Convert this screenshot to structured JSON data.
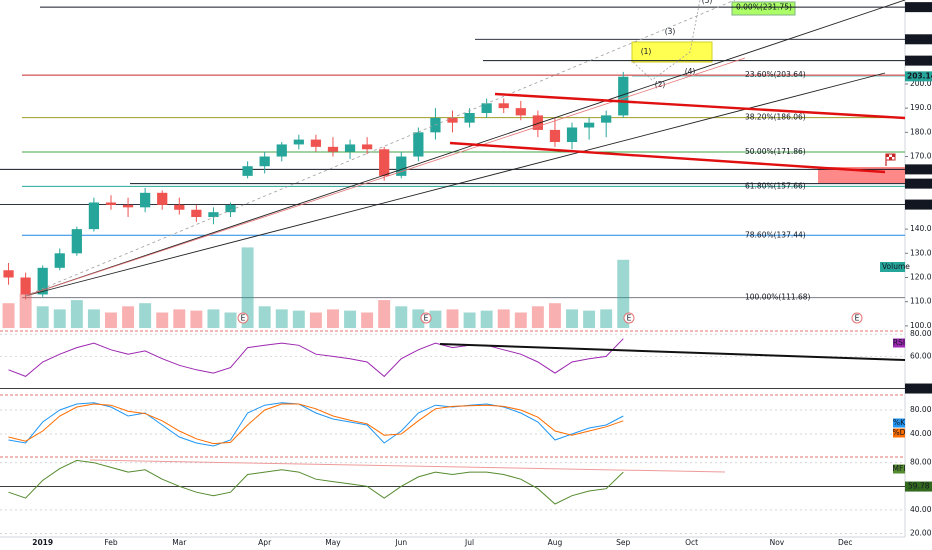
{
  "chart_data": [
    {
      "type": "candlestick",
      "categories": [
        null,
        null,
        "2019",
        null,
        null,
        null,
        "Feb",
        null,
        null,
        null,
        "Mar",
        null,
        null,
        null,
        null,
        "Apr",
        null,
        null,
        null,
        "May",
        null,
        null,
        null,
        "Jun",
        null,
        null,
        null,
        "Jul",
        null,
        null,
        null,
        null,
        "Aug",
        null,
        null,
        null,
        "Sep",
        null,
        null,
        null,
        "Oct",
        null,
        null,
        null,
        null,
        "Nov",
        null,
        null,
        null,
        "Dec",
        null,
        null,
        null
      ],
      "open": [
        123,
        120,
        113,
        124,
        130,
        140,
        151,
        150,
        149,
        155,
        150,
        148,
        145,
        147,
        162,
        166,
        170,
        175,
        177,
        174,
        172,
        175,
        173,
        162,
        170,
        180,
        186,
        184,
        188,
        192,
        190,
        187,
        181,
        176,
        182,
        184,
        187,
        null,
        null,
        null,
        null,
        null,
        null,
        null,
        null,
        null,
        null,
        null,
        null,
        null,
        null,
        null,
        null
      ],
      "high": [
        126,
        122,
        125,
        132,
        141,
        153,
        154,
        153,
        157,
        156,
        153,
        150,
        149,
        151,
        168,
        172,
        176,
        179,
        179,
        178,
        177,
        178,
        174,
        172,
        182,
        190,
        189,
        190,
        194,
        194,
        193,
        189,
        186,
        184,
        186,
        189,
        205,
        null,
        null,
        null,
        null,
        null,
        null,
        null,
        null,
        null,
        null,
        null,
        null,
        null,
        null,
        null,
        null
      ],
      "low": [
        117,
        111,
        112,
        123,
        129,
        139,
        148,
        145,
        147,
        148,
        146,
        143,
        142,
        145,
        161,
        163,
        168,
        173,
        172,
        170,
        169,
        171,
        160,
        161,
        168,
        177,
        180,
        182,
        186,
        188,
        185,
        178,
        174,
        173,
        177,
        178,
        186,
        null,
        null,
        null,
        null,
        null,
        null,
        null,
        null,
        null,
        null,
        null,
        null,
        null,
        null,
        null,
        null
      ],
      "close": [
        120,
        113,
        124,
        130,
        140,
        151,
        150,
        149,
        155,
        150,
        148,
        145,
        147,
        150,
        166,
        170,
        175,
        177,
        174,
        172,
        175,
        173,
        162,
        170,
        180,
        186,
        184,
        188,
        192,
        190,
        187,
        181,
        176,
        182,
        184,
        187,
        203,
        null,
        null,
        null,
        null,
        null,
        null,
        null,
        null,
        null,
        null,
        null,
        null,
        null,
        null,
        null,
        null
      ],
      "up_color": "#26a69a",
      "down_color": "#ef5350",
      "volume": {
        "name": "Volume",
        "values": [
          40,
          55,
          35,
          30,
          45,
          30,
          25,
          35,
          40,
          25,
          30,
          28,
          30,
          25,
          130,
          35,
          30,
          28,
          25,
          30,
          28,
          25,
          45,
          35,
          30,
          28,
          30,
          25,
          28,
          30,
          25,
          35,
          40,
          30,
          28,
          30,
          110,
          null,
          null,
          null,
          null,
          null,
          null,
          null,
          null,
          null,
          null,
          null,
          null,
          null,
          null,
          null,
          null
        ]
      },
      "ylim": [
        98.3,
        234.7
      ],
      "yticks": [
        {
          "value": 100,
          "label": "100.00"
        },
        {
          "value": 110,
          "label": "110.00"
        },
        {
          "value": 120,
          "label": "120.00"
        },
        {
          "value": 130,
          "label": "130.00"
        },
        {
          "value": 140,
          "label": "140.00"
        },
        {
          "value": 170,
          "label": "170.00"
        },
        {
          "value": 180,
          "label": "180.00"
        },
        {
          "value": 190,
          "label": "190.00"
        },
        {
          "value": 200,
          "label": "200.00"
        }
      ],
      "fib_levels": [
        {
          "label": "0.00%(231.75)",
          "value": 231.75,
          "color": "#4caf50"
        },
        {
          "label": "23.60%(203.64)",
          "value": 203.64,
          "color": "#c62828"
        },
        {
          "label": "38.20%(186.06)",
          "value": 186.06,
          "color": "#9e9d24"
        },
        {
          "label": "50.00%(171.86)",
          "value": 171.86,
          "color": "#43a047"
        },
        {
          "label": "61.80%(157.66)",
          "value": 157.66,
          "color": "#26a69a"
        },
        {
          "label": "78.60%(137.44)",
          "value": 137.44,
          "color": "#1e88e5"
        },
        {
          "label": "100.00%(111.68)",
          "value": 111.68,
          "color": "#787b86"
        }
      ],
      "price_lines": [
        {
          "value": 231.75,
          "label": "231.75",
          "color": "#131722"
        },
        {
          "value": 218.46,
          "label": "218.46",
          "color": "#131722"
        },
        {
          "value": 209.64,
          "label": "209.64",
          "color": "#131722"
        },
        {
          "value": 203.14,
          "label": "203.14",
          "color": "#26a69a"
        },
        {
          "value": 164.69,
          "label": "164.69",
          "color": "#131722"
        },
        {
          "value": 158.8,
          "label": "158.80",
          "color": "#131722"
        },
        {
          "value": 150.14,
          "label": "150.14",
          "color": "#131722"
        }
      ],
      "annotations": [
        "(1)",
        "(2)",
        "(3)",
        "(4)",
        "(5)"
      ],
      "earnings": [
        "E",
        "E",
        "E",
        "E"
      ]
    },
    {
      "type": "line",
      "series": [
        {
          "name": "RSI",
          "color": "#9c27b0",
          "values": [
            48,
            42,
            55,
            62,
            68,
            72,
            66,
            62,
            65,
            58,
            52,
            48,
            45,
            50,
            68,
            70,
            72,
            70,
            62,
            60,
            58,
            55,
            42,
            58,
            66,
            72,
            68,
            70,
            70,
            66,
            62,
            55,
            45,
            55,
            58,
            60,
            76
          ]
        }
      ],
      "ylim": [
        28,
        82
      ],
      "yticks": [
        {
          "value": 80,
          "label": "80.00"
        },
        {
          "value": 60,
          "label": "60.00"
        }
      ],
      "levels": [
        {
          "value": 31.13,
          "label": "31.13",
          "color": "#131722"
        }
      ]
    },
    {
      "type": "line",
      "series": [
        {
          "name": "%K",
          "color": "#2196f3",
          "values": [
            30,
            25,
            60,
            80,
            90,
            92,
            85,
            70,
            75,
            55,
            35,
            25,
            20,
            30,
            75,
            88,
            92,
            90,
            75,
            65,
            60,
            55,
            25,
            45,
            75,
            88,
            85,
            88,
            90,
            85,
            75,
            60,
            30,
            40,
            50,
            55,
            70
          ]
        },
        {
          "name": "%D",
          "color": "#ff6d00",
          "values": [
            35,
            28,
            45,
            70,
            85,
            90,
            88,
            78,
            74,
            62,
            45,
            32,
            24,
            26,
            55,
            80,
            90,
            90,
            82,
            70,
            63,
            57,
            38,
            40,
            62,
            82,
            86,
            87,
            88,
            86,
            80,
            68,
            45,
            38,
            45,
            52,
            62
          ]
        }
      ],
      "ylim": [
        5,
        100
      ],
      "yticks": [
        {
          "value": 80,
          "label": "80.00"
        },
        {
          "value": 40,
          "label": "40.00"
        }
      ],
      "levels": []
    },
    {
      "type": "line",
      "series": [
        {
          "name": "MFI",
          "color": "#558b2f",
          "values": [
            55,
            50,
            65,
            75,
            82,
            80,
            76,
            72,
            74,
            66,
            60,
            55,
            52,
            55,
            70,
            72,
            74,
            72,
            66,
            64,
            62,
            60,
            50,
            60,
            68,
            72,
            70,
            72,
            72,
            70,
            66,
            58,
            45,
            52,
            56,
            58,
            72
          ]
        }
      ],
      "ylim": [
        17,
        84
      ],
      "yticks": [
        {
          "value": 80,
          "label": "80.00"
        },
        {
          "value": 40,
          "label": "40.00"
        },
        {
          "value": 20,
          "label": "20.00"
        }
      ],
      "levels": [
        {
          "value": 59.78,
          "label": "59.78",
          "color": "#33691e"
        }
      ]
    }
  ]
}
